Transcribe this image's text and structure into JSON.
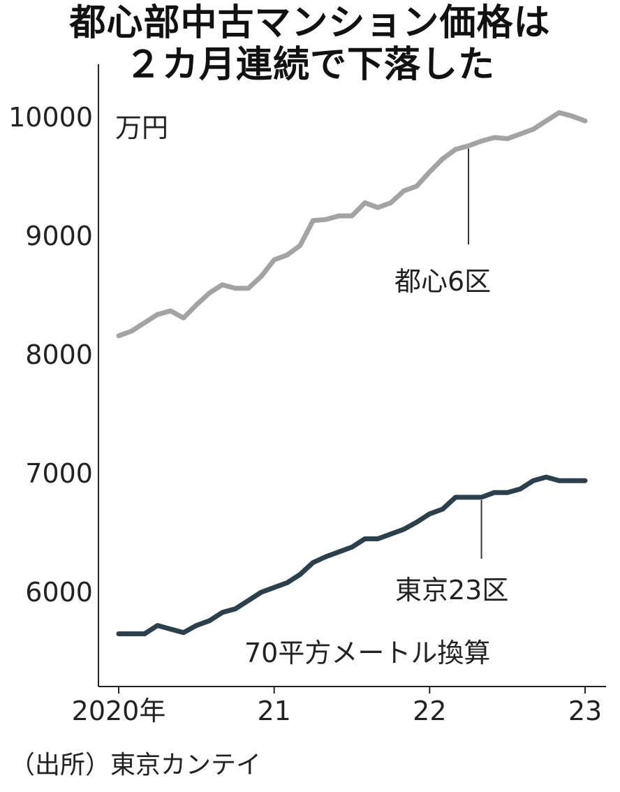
{
  "header": {
    "title_line1": "都心部中古マンション価格は",
    "title_line2": "２カ月連続で下落した"
  },
  "source": "（出所）東京カンテイ",
  "chart_data": {
    "type": "line",
    "unit_label": "万円",
    "note": "70平方メートル換算",
    "ylim": [
      5300,
      10300
    ],
    "y_ticks": [
      6000,
      7000,
      8000,
      9000,
      10000
    ],
    "x_ticks": [
      {
        "t": 0,
        "label": "2020年"
      },
      {
        "t": 12,
        "label": "21"
      },
      {
        "t": 24,
        "label": "22"
      },
      {
        "t": 36,
        "label": "23"
      }
    ],
    "x_range": [
      0,
      36
    ],
    "grid": false,
    "series": [
      {
        "name": "都心6区",
        "color": "#a3a3a3",
        "label_at": 27,
        "values": [
          8160,
          8200,
          8270,
          8340,
          8370,
          8310,
          8420,
          8520,
          8590,
          8560,
          8560,
          8660,
          8800,
          8840,
          8920,
          9130,
          9140,
          9170,
          9170,
          9280,
          9240,
          9280,
          9380,
          9420,
          9540,
          9650,
          9730,
          9760,
          9800,
          9830,
          9820,
          9860,
          9900,
          9970,
          10040,
          10010,
          9970
        ]
      },
      {
        "name": "東京23区",
        "color": "#2b3f4c",
        "label_at": 28,
        "values": [
          5650,
          5650,
          5650,
          5720,
          5690,
          5660,
          5720,
          5760,
          5830,
          5860,
          5930,
          6000,
          6040,
          6080,
          6150,
          6250,
          6300,
          6340,
          6380,
          6450,
          6450,
          6490,
          6530,
          6590,
          6660,
          6700,
          6800,
          6800,
          6800,
          6840,
          6840,
          6870,
          6940,
          6970,
          6940,
          6940,
          6940
        ]
      }
    ]
  }
}
